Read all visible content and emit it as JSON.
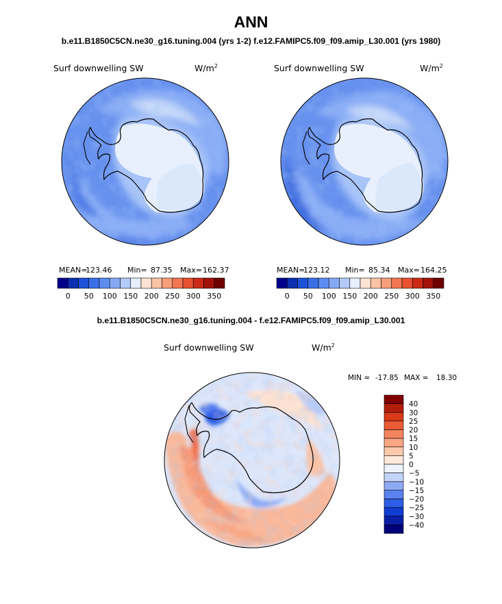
{
  "page": {
    "title": "ANN",
    "subtitle": "b.e11.B1850C5CN.ne30_g16.tuning.004 (yrs 1-2)  f.e12.FAMIPC5.f09_f09.amip_L30.001 (yrs 1980)",
    "diff_title": "b.e11.B1850C5CN.ne30_g16.tuning.004 - f.e12.FAMIPC5.f09_f09.amip_L30.001"
  },
  "chart_data": [
    {
      "type": "heatmap",
      "projection": "south-polar-stereographic",
      "title": "Surf downwelling SW",
      "units": "W/m",
      "units_sup": "2",
      "stats": {
        "mean_label": "MEAN=",
        "mean": "123.46",
        "min_label": "Min=",
        "min": "87.35",
        "max_label": "Max=",
        "max": "162.37"
      },
      "colorbar": {
        "orientation": "horizontal",
        "colors": [
          "#00008b",
          "#0b2fb0",
          "#1c52d8",
          "#3a6fe6",
          "#5c8cf0",
          "#86a9f5",
          "#b4caf8",
          "#e7eefc",
          "#fde3d3",
          "#fbc3a5",
          "#f79e7a",
          "#f27652",
          "#e85030",
          "#cc2a14",
          "#a3120a",
          "#6e0000"
        ],
        "tick_labels": [
          "0",
          "50",
          "100",
          "150",
          "200",
          "250",
          "300",
          "350"
        ]
      }
    },
    {
      "type": "heatmap",
      "projection": "south-polar-stereographic",
      "title": "Surf downwelling SW",
      "units": "W/m",
      "units_sup": "2",
      "stats": {
        "mean_label": "MEAN=",
        "mean": "123.12",
        "min_label": "Min=",
        "min": "85.34",
        "max_label": "Max=",
        "max": "164.25"
      },
      "colorbar": {
        "orientation": "horizontal",
        "colors": [
          "#00008b",
          "#0b2fb0",
          "#1c52d8",
          "#3a6fe6",
          "#5c8cf0",
          "#86a9f5",
          "#b4caf8",
          "#e7eefc",
          "#fde3d3",
          "#fbc3a5",
          "#f79e7a",
          "#f27652",
          "#e85030",
          "#cc2a14",
          "#a3120a",
          "#6e0000"
        ],
        "tick_labels": [
          "0",
          "50",
          "100",
          "150",
          "200",
          "250",
          "300",
          "350"
        ]
      }
    },
    {
      "type": "heatmap",
      "projection": "south-polar-stereographic",
      "title": "Surf downwelling SW",
      "units": "W/m",
      "units_sup": "2",
      "stats": {
        "min_label": "MIN =",
        "min": "-17.85",
        "max_label": "MAX =",
        "max": "18.30"
      },
      "colorbar": {
        "orientation": "vertical",
        "colors": [
          "#00007a",
          "#0a1fa6",
          "#0f3dd1",
          "#2e5ee6",
          "#5a82f0",
          "#8eaaf5",
          "#c2d4f9",
          "#eef3fd",
          "#fde8db",
          "#fbc8ab",
          "#f8a683",
          "#f4845e",
          "#ec5b36",
          "#d83a1a",
          "#b21e0a",
          "#800000"
        ],
        "tick_labels": [
          "40",
          "30",
          "25",
          "20",
          "15",
          "10",
          "5",
          "0",
          "−5",
          "−10",
          "−15",
          "−20",
          "−25",
          "−30",
          "−40"
        ]
      }
    }
  ]
}
